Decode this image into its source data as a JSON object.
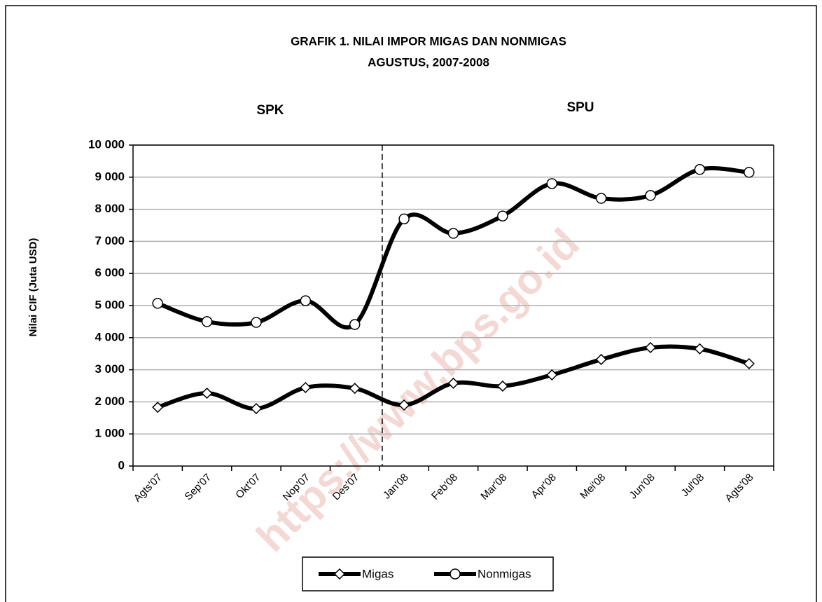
{
  "chart_data": {
    "type": "line",
    "title": "GRAFIK 1. NILAI IMPOR MIGAS DAN NONMIGAS",
    "subtitle": "AGUSTUS, 2007-2008",
    "y_label": "Nilai CIF (Juta USD)",
    "annotations": [
      "SPK",
      "SPU"
    ],
    "watermark": "https://www.bps.go.id",
    "categories": [
      "Agts'07",
      "Sep'07",
      "Okt'07",
      "Nop'07",
      "Des'07",
      "Jan'08",
      "Feb'08",
      "Mar'08",
      "Apr'08",
      "Mei'08",
      "Jun'08",
      "Jul'08",
      "Agts'08"
    ],
    "series": [
      {
        "name": "Migas",
        "color": "#000000",
        "marker": "diamond",
        "values": [
          1830,
          2270,
          1790,
          2445,
          2420,
          1900,
          2580,
          2490,
          2840,
          3320,
          3690,
          3650,
          3190
        ]
      },
      {
        "name": "Nonmigas",
        "color": "#000000",
        "marker": "circle",
        "values": [
          5070,
          4500,
          4475,
          5150,
          4410,
          7700,
          7250,
          7790,
          8800,
          8340,
          8430,
          9240,
          9150
        ]
      }
    ],
    "ylim": [
      0,
      10000
    ],
    "yticks": [
      0,
      {
        "value": 1000,
        "label": "1 000"
      },
      {
        "value": 2000,
        "label": "2 000"
      },
      {
        "value": 3000,
        "label": "3 000"
      },
      {
        "value": 4000,
        "label": "4 000"
      },
      {
        "value": 5000,
        "label": "5 000"
      },
      {
        "value": 6000,
        "label": "6 000"
      },
      {
        "value": 7000,
        "label": "7 000"
      },
      {
        "value": 8000,
        "label": "8 000"
      },
      {
        "value": 9000,
        "label": "9 000"
      },
      {
        "value": 10000,
        "label": "10 000"
      }
    ],
    "grid": true,
    "smooth": true,
    "legend": "bottom"
  }
}
